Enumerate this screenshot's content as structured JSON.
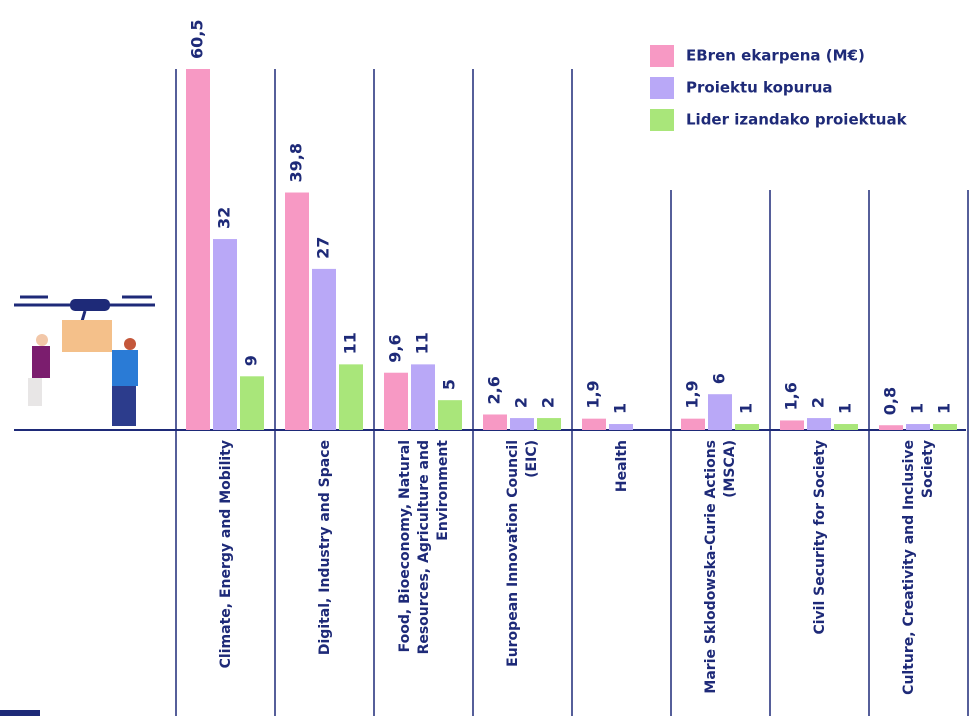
{
  "chart_data": {
    "type": "bar",
    "categories": [
      "Climate, Energy and Mobility",
      "Digital, Industry and Space",
      "Food, Bioeconomy, Natural Resources, Agriculture and Environment",
      "European Innovation Council (EIC)",
      "Health",
      "Marie Sklodowska-Curie Actions (MSCA)",
      "Civil Security for Society",
      "Culture, Creativity and Inclusive Society"
    ],
    "series": [
      {
        "name": "EBren ekarpena (M€)",
        "color": "#f799c4",
        "values": [
          60.5,
          39.8,
          9.6,
          2.6,
          1.9,
          1.9,
          1.6,
          0.8
        ],
        "value_labels": [
          "60,5",
          "39,8",
          "9,6",
          "2,6",
          "1,9",
          "1,9",
          "1,6",
          "0,8"
        ]
      },
      {
        "name": "Proiektu kopurua",
        "color": "#b9a8f7",
        "values": [
          32,
          27,
          11,
          2,
          1,
          6,
          2,
          1
        ]
      },
      {
        "name": "Lider izandako proiektuak",
        "color": "#a9e67a",
        "values": [
          9,
          11,
          5,
          2,
          null,
          1,
          1,
          1
        ]
      }
    ],
    "legend": "top-right"
  }
}
